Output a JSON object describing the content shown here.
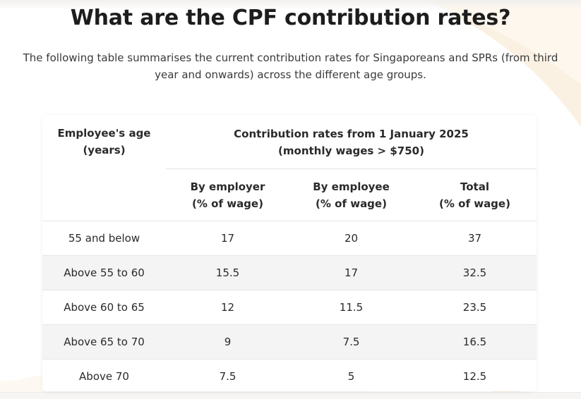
{
  "title": "What are the CPF contribution rates?",
  "intro": "The following table summarises the current contribution rates for Singaporeans and SPRs (from third year and onwards) across the different age groups.",
  "table": {
    "age_header": [
      "Employee's age",
      "(years)"
    ],
    "rates_header": [
      "Contribution rates from 1 January 2025",
      "(monthly wages > $750)"
    ],
    "sub_headers": [
      [
        "By employer",
        "(% of wage)"
      ],
      [
        "By employee",
        "(% of wage)"
      ],
      [
        "Total",
        "(% of wage)"
      ]
    ],
    "rows": [
      [
        "55 and below",
        "17",
        "20",
        "37"
      ],
      [
        "Above 55 to 60",
        "15.5",
        "17",
        "32.5"
      ],
      [
        "Above 60 to 65",
        "12",
        "11.5",
        "23.5"
      ],
      [
        "Above 65 to 70",
        "9",
        "7.5",
        "16.5"
      ],
      [
        "Above 70",
        "7.5",
        "5",
        "12.5"
      ]
    ]
  },
  "colors": {
    "row_alt": "#f4f4f4",
    "border": "#e6e6e6",
    "decor": "#fbf3e6"
  }
}
